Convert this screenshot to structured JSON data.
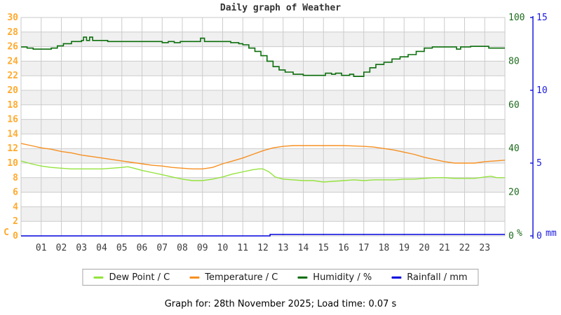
{
  "title": "Daily graph of Weather",
  "footer": "Graph for: 28th November 2025; Load time: 0.07 s",
  "chart_data": {
    "type": "line",
    "title": "Daily graph of Weather",
    "layout": {
      "band_fill": "#f0f0f0",
      "grid_color": "#cccccc",
      "border_color": "#c8c8c8",
      "x_label_color": "#3c3c3c",
      "legend_position": "bottom"
    },
    "x_axis": {
      "min": 0,
      "max": 24,
      "tick_hours": [
        1,
        2,
        3,
        4,
        5,
        6,
        7,
        8,
        9,
        10,
        11,
        12,
        13,
        14,
        15,
        16,
        17,
        18,
        19,
        20,
        21,
        22,
        23
      ],
      "tick_labels": [
        "01",
        "02",
        "03",
        "04",
        "05",
        "06",
        "07",
        "08",
        "09",
        "10",
        "11",
        "12",
        "13",
        "14",
        "15",
        "16",
        "17",
        "18",
        "19",
        "20",
        "21",
        "22",
        "23"
      ]
    },
    "axes": {
      "temperature_c": {
        "side": "left",
        "min": 0,
        "max": 30,
        "ticks": [
          0,
          2,
          4,
          6,
          8,
          10,
          12,
          14,
          16,
          18,
          20,
          22,
          24,
          26,
          28,
          30
        ],
        "unit": "C",
        "color": "#ffaa2e"
      },
      "humidity_pct": {
        "side": "right",
        "min": 0,
        "max": 100,
        "ticks": [
          0,
          20,
          40,
          60,
          80,
          100
        ],
        "unit": "%",
        "color": "#1c6b1c"
      },
      "rainfall_mm": {
        "side": "right-outer",
        "min": 0,
        "max": 15,
        "ticks": [
          0,
          5,
          10,
          15
        ],
        "unit": "mm",
        "color": "#1a1ae0"
      }
    },
    "series": [
      {
        "key": "dew_point",
        "name": "Dew Point / C",
        "axis": "temperature_c",
        "color": "#94e33d",
        "step": false,
        "width": 1.4,
        "points": [
          [
            0,
            10.3
          ],
          [
            0.5,
            9.9
          ],
          [
            1,
            9.6
          ],
          [
            1.5,
            9.4
          ],
          [
            2,
            9.3
          ],
          [
            2.5,
            9.2
          ],
          [
            3,
            9.2
          ],
          [
            3.5,
            9.2
          ],
          [
            4,
            9.2
          ],
          [
            4.5,
            9.3
          ],
          [
            5,
            9.4
          ],
          [
            5.3,
            9.5
          ],
          [
            5.6,
            9.3
          ],
          [
            6,
            9.0
          ],
          [
            6.5,
            8.7
          ],
          [
            7,
            8.4
          ],
          [
            7.5,
            8.1
          ],
          [
            8,
            7.8
          ],
          [
            8.5,
            7.6
          ],
          [
            9,
            7.6
          ],
          [
            9.5,
            7.8
          ],
          [
            10,
            8.1
          ],
          [
            10.5,
            8.5
          ],
          [
            11,
            8.8
          ],
          [
            11.5,
            9.1
          ],
          [
            11.8,
            9.2
          ],
          [
            12,
            9.2
          ],
          [
            12.3,
            8.8
          ],
          [
            12.6,
            8.1
          ],
          [
            13,
            7.8
          ],
          [
            13.5,
            7.7
          ],
          [
            14,
            7.6
          ],
          [
            14.5,
            7.6
          ],
          [
            15,
            7.4
          ],
          [
            15.5,
            7.5
          ],
          [
            16,
            7.6
          ],
          [
            16.5,
            7.7
          ],
          [
            17,
            7.6
          ],
          [
            17.5,
            7.7
          ],
          [
            18,
            7.7
          ],
          [
            18.5,
            7.7
          ],
          [
            19,
            7.8
          ],
          [
            19.5,
            7.8
          ],
          [
            20,
            7.9
          ],
          [
            20.5,
            8.0
          ],
          [
            21,
            8.0
          ],
          [
            21.5,
            7.9
          ],
          [
            22,
            7.9
          ],
          [
            22.5,
            7.9
          ],
          [
            23,
            8.1
          ],
          [
            23.3,
            8.2
          ],
          [
            23.6,
            8.0
          ],
          [
            24,
            8.0
          ]
        ]
      },
      {
        "key": "temperature",
        "name": "Temperature / C",
        "axis": "temperature_c",
        "color": "#f79021",
        "step": false,
        "width": 1.4,
        "points": [
          [
            0,
            12.7
          ],
          [
            0.5,
            12.4
          ],
          [
            1,
            12.1
          ],
          [
            1.5,
            11.9
          ],
          [
            2,
            11.6
          ],
          [
            2.5,
            11.4
          ],
          [
            3,
            11.1
          ],
          [
            3.5,
            10.9
          ],
          [
            4,
            10.7
          ],
          [
            4.5,
            10.5
          ],
          [
            5,
            10.3
          ],
          [
            5.5,
            10.1
          ],
          [
            6,
            9.9
          ],
          [
            6.5,
            9.7
          ],
          [
            7,
            9.6
          ],
          [
            7.5,
            9.4
          ],
          [
            8,
            9.3
          ],
          [
            8.5,
            9.2
          ],
          [
            9,
            9.2
          ],
          [
            9.5,
            9.4
          ],
          [
            10,
            9.9
          ],
          [
            10.5,
            10.3
          ],
          [
            11,
            10.7
          ],
          [
            11.5,
            11.2
          ],
          [
            12,
            11.7
          ],
          [
            12.5,
            12.1
          ],
          [
            13,
            12.3
          ],
          [
            13.5,
            12.4
          ],
          [
            14,
            12.4
          ],
          [
            15,
            12.4
          ],
          [
            16,
            12.4
          ],
          [
            17,
            12.3
          ],
          [
            17.5,
            12.2
          ],
          [
            18,
            12.0
          ],
          [
            18.5,
            11.8
          ],
          [
            19,
            11.5
          ],
          [
            19.5,
            11.2
          ],
          [
            20,
            10.8
          ],
          [
            20.5,
            10.5
          ],
          [
            21,
            10.2
          ],
          [
            21.5,
            10.0
          ],
          [
            22,
            10.0
          ],
          [
            22.5,
            10.0
          ],
          [
            23,
            10.2
          ],
          [
            23.5,
            10.3
          ],
          [
            24,
            10.4
          ]
        ]
      },
      {
        "key": "humidity",
        "name": "Humidity / %",
        "axis": "humidity_pct",
        "color": "#0b6e0b",
        "step": true,
        "width": 1.6,
        "points": [
          [
            0,
            86.5
          ],
          [
            0.3,
            86
          ],
          [
            0.6,
            85.5
          ],
          [
            1.2,
            85.5
          ],
          [
            1.5,
            86
          ],
          [
            1.8,
            87
          ],
          [
            2.1,
            88
          ],
          [
            2.5,
            89
          ],
          [
            3.0,
            89.5
          ],
          [
            3.1,
            91
          ],
          [
            3.25,
            89.5
          ],
          [
            3.4,
            91
          ],
          [
            3.55,
            89.5
          ],
          [
            4.3,
            89
          ],
          [
            6.8,
            89
          ],
          [
            7.0,
            88.5
          ],
          [
            7.3,
            89
          ],
          [
            7.6,
            88.5
          ],
          [
            7.9,
            89
          ],
          [
            8.8,
            89
          ],
          [
            8.9,
            90.5
          ],
          [
            9.1,
            89
          ],
          [
            10.2,
            89
          ],
          [
            10.4,
            88.5
          ],
          [
            10.8,
            88
          ],
          [
            11.0,
            87.5
          ],
          [
            11.3,
            86
          ],
          [
            11.6,
            84.5
          ],
          [
            11.9,
            82.5
          ],
          [
            12.2,
            80
          ],
          [
            12.5,
            77.5
          ],
          [
            12.8,
            76
          ],
          [
            13.1,
            75
          ],
          [
            13.5,
            74
          ],
          [
            14.0,
            73.5
          ],
          [
            14.9,
            73.5
          ],
          [
            15.1,
            74.5
          ],
          [
            15.4,
            74
          ],
          [
            15.6,
            74.5
          ],
          [
            15.9,
            73.5
          ],
          [
            16.3,
            74
          ],
          [
            16.5,
            73
          ],
          [
            16.8,
            73
          ],
          [
            17.0,
            75
          ],
          [
            17.3,
            77
          ],
          [
            17.6,
            78.5
          ],
          [
            18.0,
            79.5
          ],
          [
            18.4,
            81
          ],
          [
            18.8,
            82
          ],
          [
            19.2,
            83
          ],
          [
            19.6,
            84.5
          ],
          [
            20.0,
            86
          ],
          [
            20.4,
            86.5
          ],
          [
            21.5,
            86.5
          ],
          [
            21.6,
            85.5
          ],
          [
            21.8,
            86.5
          ],
          [
            22.3,
            86.8
          ],
          [
            23.2,
            86
          ],
          [
            24,
            86
          ]
        ]
      },
      {
        "key": "rainfall",
        "name": "Rainfall / mm",
        "axis": "rainfall_mm",
        "color": "#0000dd",
        "step": true,
        "width": 1.5,
        "points": [
          [
            0,
            0
          ],
          [
            12.3,
            0
          ],
          [
            12.35,
            0.1
          ],
          [
            24,
            0.1
          ]
        ]
      }
    ]
  }
}
